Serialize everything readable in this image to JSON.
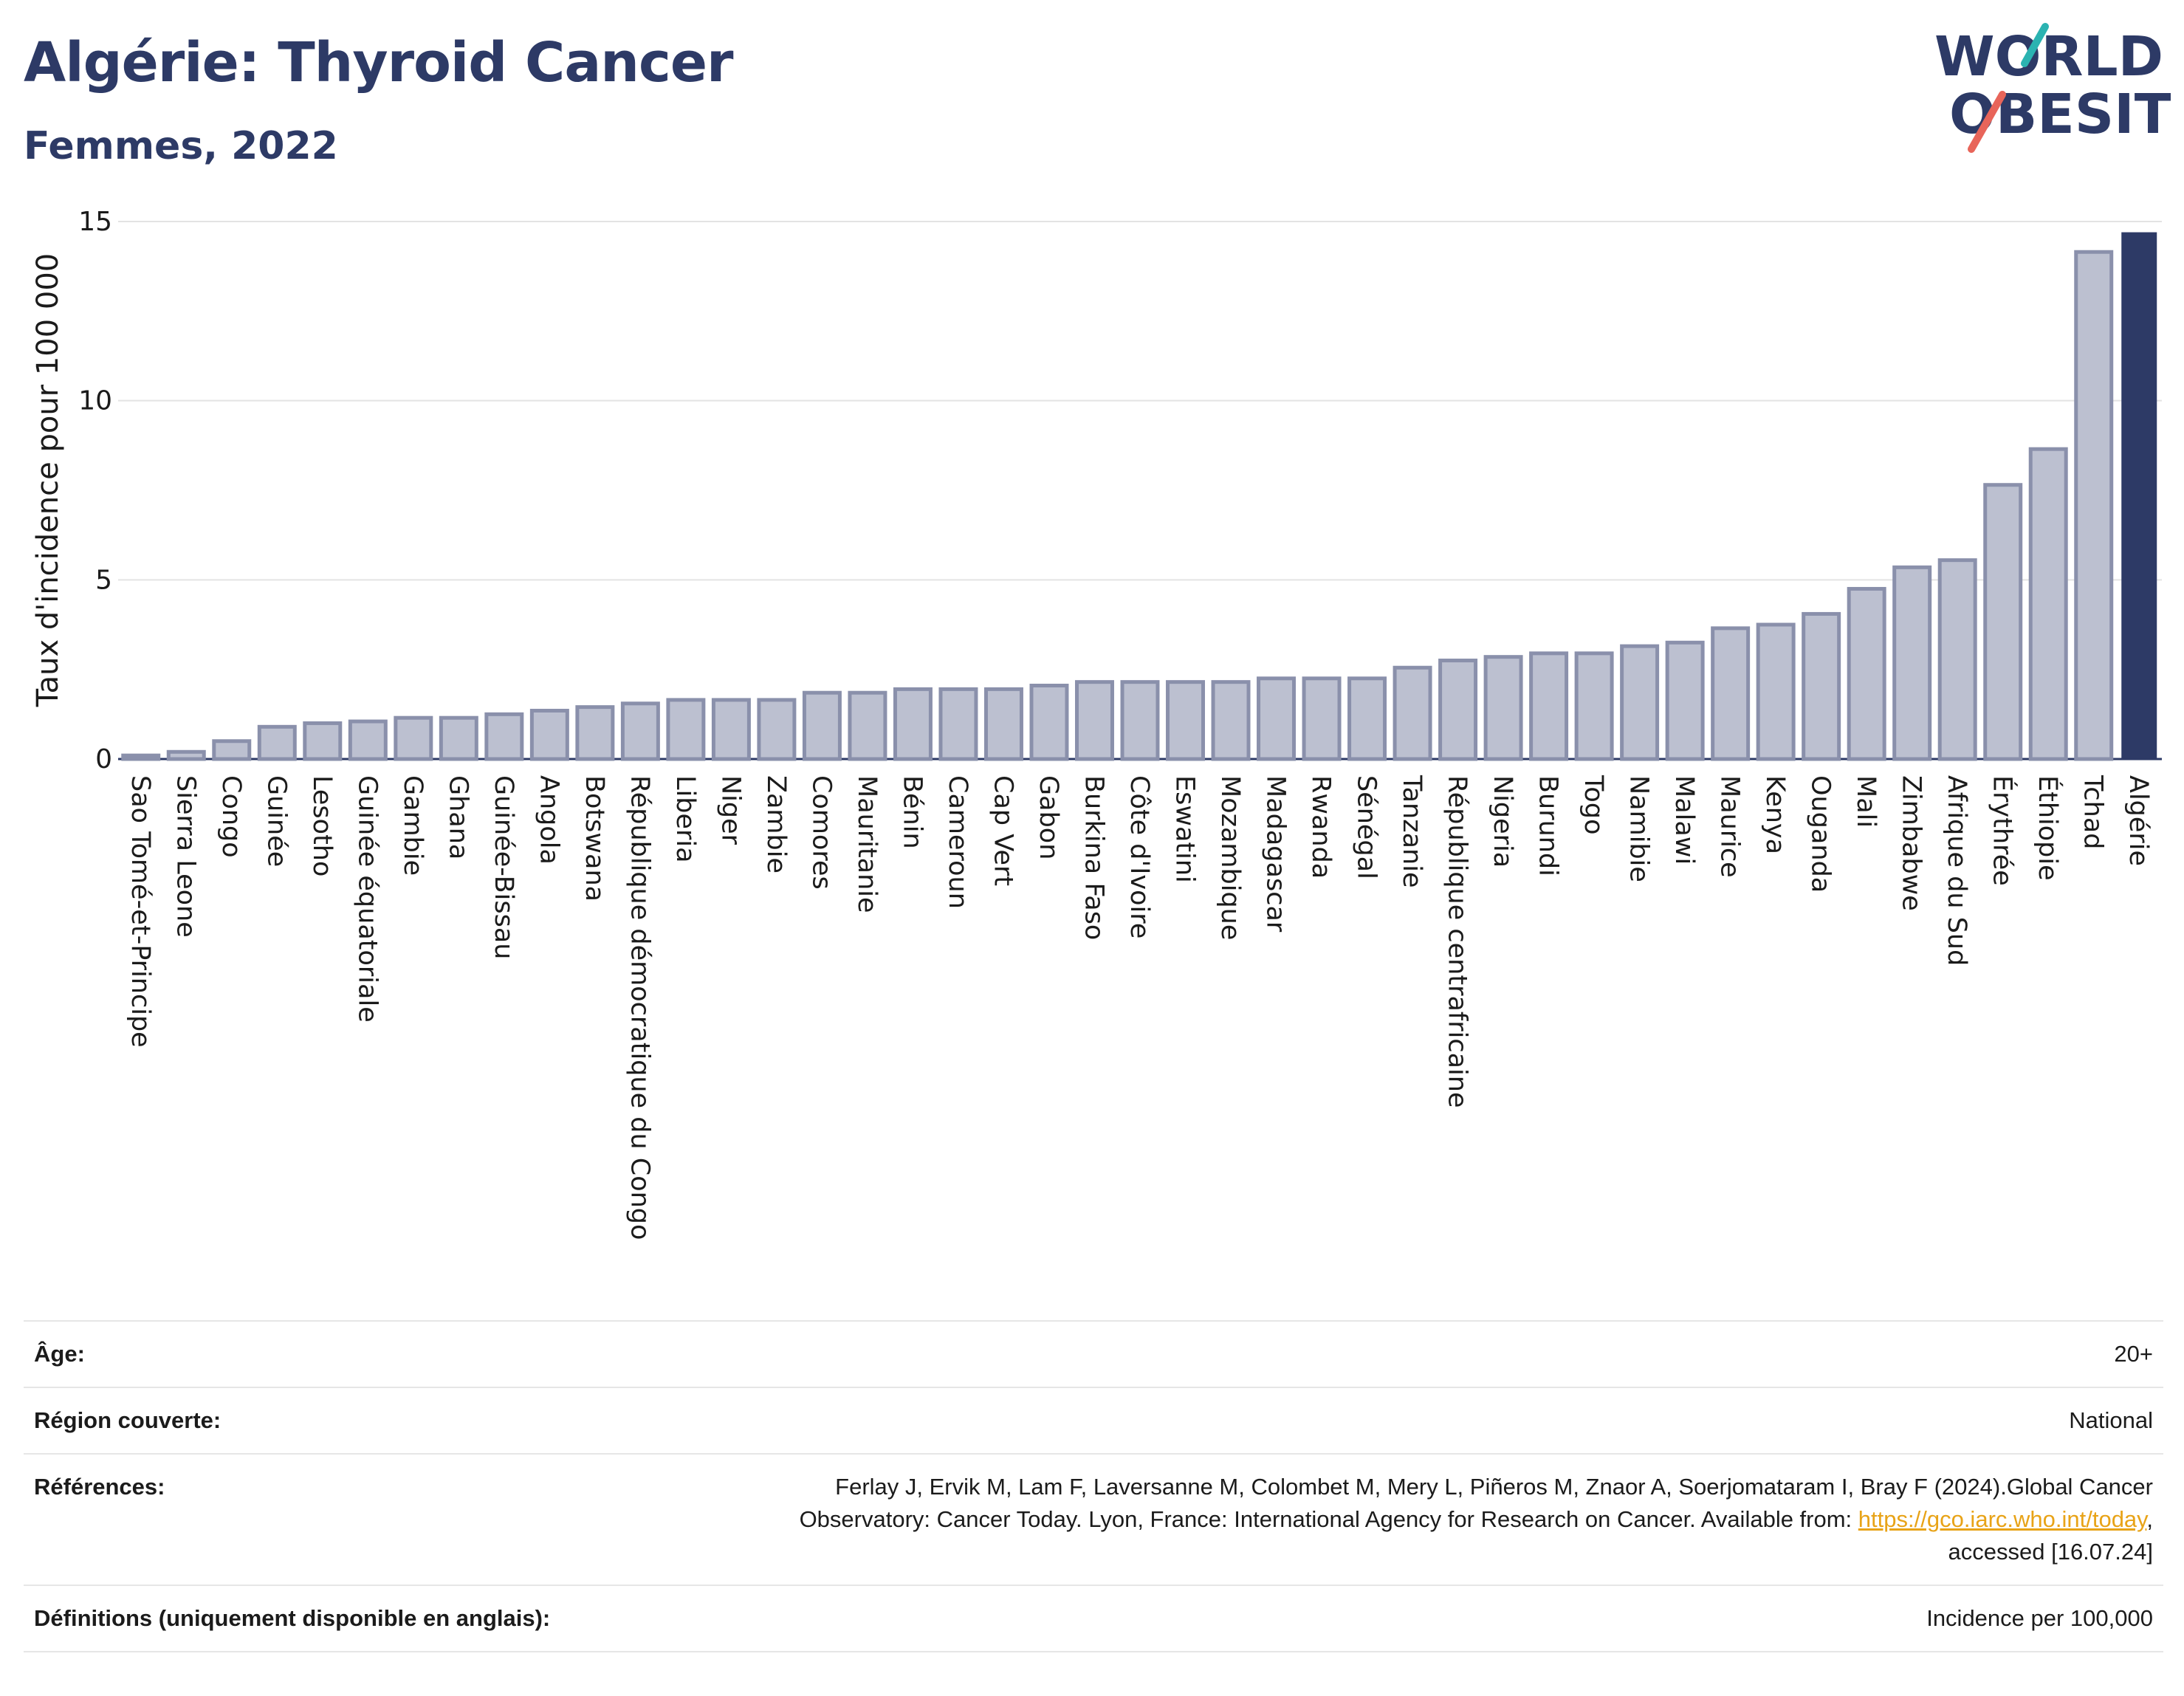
{
  "header": {
    "title": "Algérie: Thyroid Cancer",
    "subtitle": "Femmes, 2022"
  },
  "logo": {
    "line1": "WORLD",
    "line2": "OBESITY"
  },
  "colors": {
    "title": "#2d3a66",
    "bar": "#bcc0d0",
    "bar_stroke": "#8a90ab",
    "highlight": "#2d3a66",
    "logo_teal": "#2bb3b1",
    "logo_red": "#e8655a",
    "link": "#e8a317"
  },
  "chart_data": {
    "type": "bar",
    "title": "Algérie: Thyroid Cancer",
    "subtitle": "Femmes, 2022",
    "ylabel": "Taux d'incidence pour 100 000",
    "xlabel": "",
    "ylim": [
      0,
      15
    ],
    "yticks": [
      0,
      5,
      10,
      15
    ],
    "grid": true,
    "highlight": "Algérie",
    "categories": [
      "Sao Tomé-et-Principe",
      "Sierra Leone",
      "Congo",
      "Guinée",
      "Lesotho",
      "Guinée équatoriale",
      "Gambie",
      "Ghana",
      "Guinée-Bissau",
      "Angola",
      "Botswana",
      "République démocratique du Congo",
      "Liberia",
      "Niger",
      "Zambie",
      "Comores",
      "Mauritanie",
      "Bénin",
      "Cameroun",
      "Cap Vert",
      "Gabon",
      "Burkina Faso",
      "Côte d'Ivoire",
      "Eswatini",
      "Mozambique",
      "Madagascar",
      "Rwanda",
      "Sénégal",
      "Tanzanie",
      "République centrafricaine",
      "Nigeria",
      "Burundi",
      "Togo",
      "Namibie",
      "Malawi",
      "Maurice",
      "Kenya",
      "Ouganda",
      "Mali",
      "Zimbabwe",
      "Afrique du Sud",
      "Érythrée",
      "Éthiopie",
      "Tchad",
      "Algérie"
    ],
    "values": [
      0.1,
      0.2,
      0.5,
      0.9,
      1.0,
      1.05,
      1.15,
      1.15,
      1.25,
      1.35,
      1.45,
      1.55,
      1.65,
      1.65,
      1.65,
      1.85,
      1.85,
      1.95,
      1.95,
      1.95,
      2.05,
      2.15,
      2.15,
      2.15,
      2.15,
      2.25,
      2.25,
      2.25,
      2.55,
      2.75,
      2.85,
      2.95,
      2.95,
      3.15,
      3.25,
      3.65,
      3.75,
      4.05,
      4.75,
      5.35,
      5.55,
      7.65,
      8.65,
      14.15,
      14.7
    ]
  },
  "info": {
    "rows": [
      {
        "label": "Âge:",
        "value": "20+"
      },
      {
        "label": "Région couverte:",
        "value": "National"
      },
      {
        "label": "Références:",
        "value_line1": "Ferlay J, Ervik M, Lam F, Laversanne M, Colombet M, Mery L, Piñeros M, Znaor A, Soerjomataram I, Bray F (2024).Global Cancer",
        "value_line2_pre": "Observatory: Cancer Today. Lyon, France: International Agency for Research on Cancer. Available from: ",
        "link": "https://gco.iarc.who.int/today",
        "value_line2_post": ",",
        "value_line3": "accessed [16.07.24]"
      },
      {
        "label": "Définitions (uniquement disponible en anglais):",
        "value": "Incidence per 100,000"
      }
    ]
  }
}
